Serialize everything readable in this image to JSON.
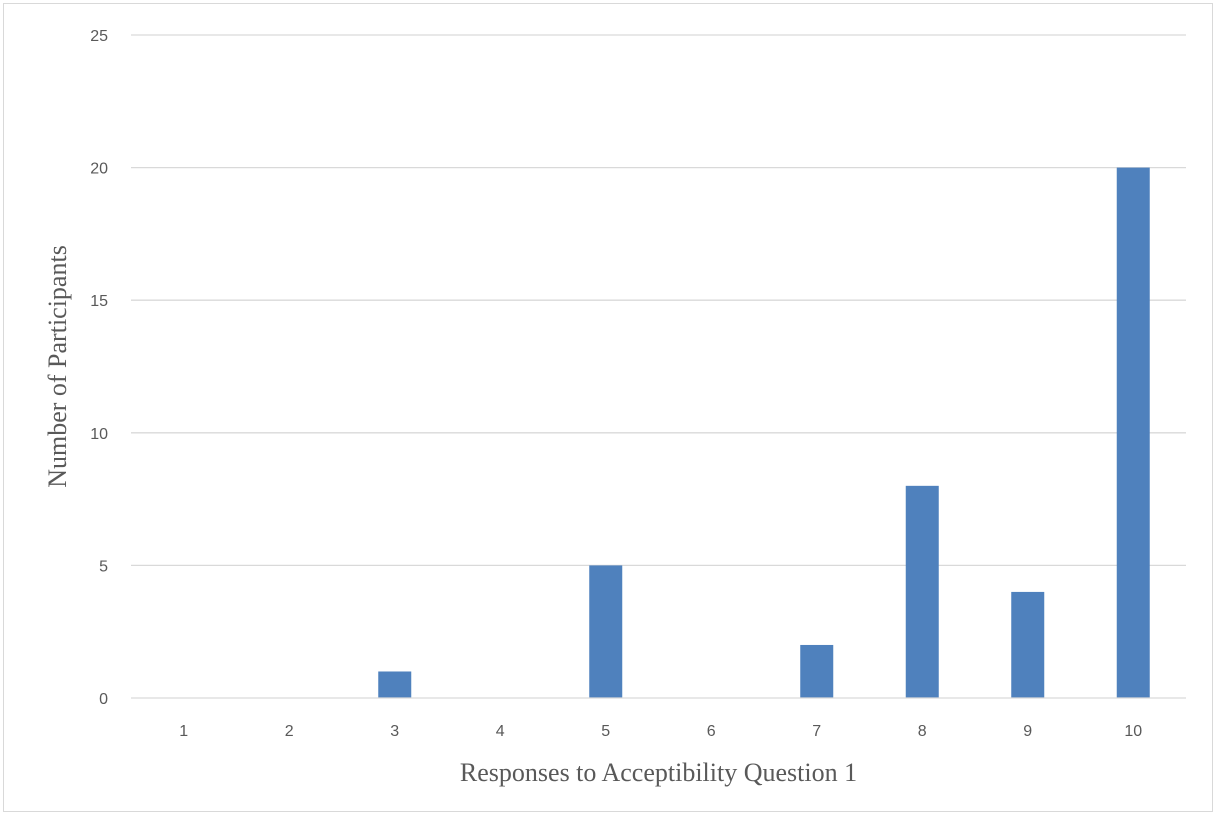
{
  "chart_data": {
    "type": "bar",
    "categories": [
      "1",
      "2",
      "3",
      "4",
      "5",
      "6",
      "7",
      "8",
      "9",
      "10"
    ],
    "values": [
      0,
      0,
      1,
      0,
      5,
      0,
      2,
      8,
      4,
      20
    ],
    "xlabel": "Responses to Acceptibility Question 1",
    "ylabel": "Number of Participants",
    "ylim": [
      0,
      25
    ],
    "yticks": [
      0,
      5,
      10,
      15,
      20,
      25
    ],
    "grid": true,
    "legend": "none",
    "bar_color": "#4f81bd",
    "grid_color": "#d9d9d9",
    "text_color": "#595959"
  }
}
